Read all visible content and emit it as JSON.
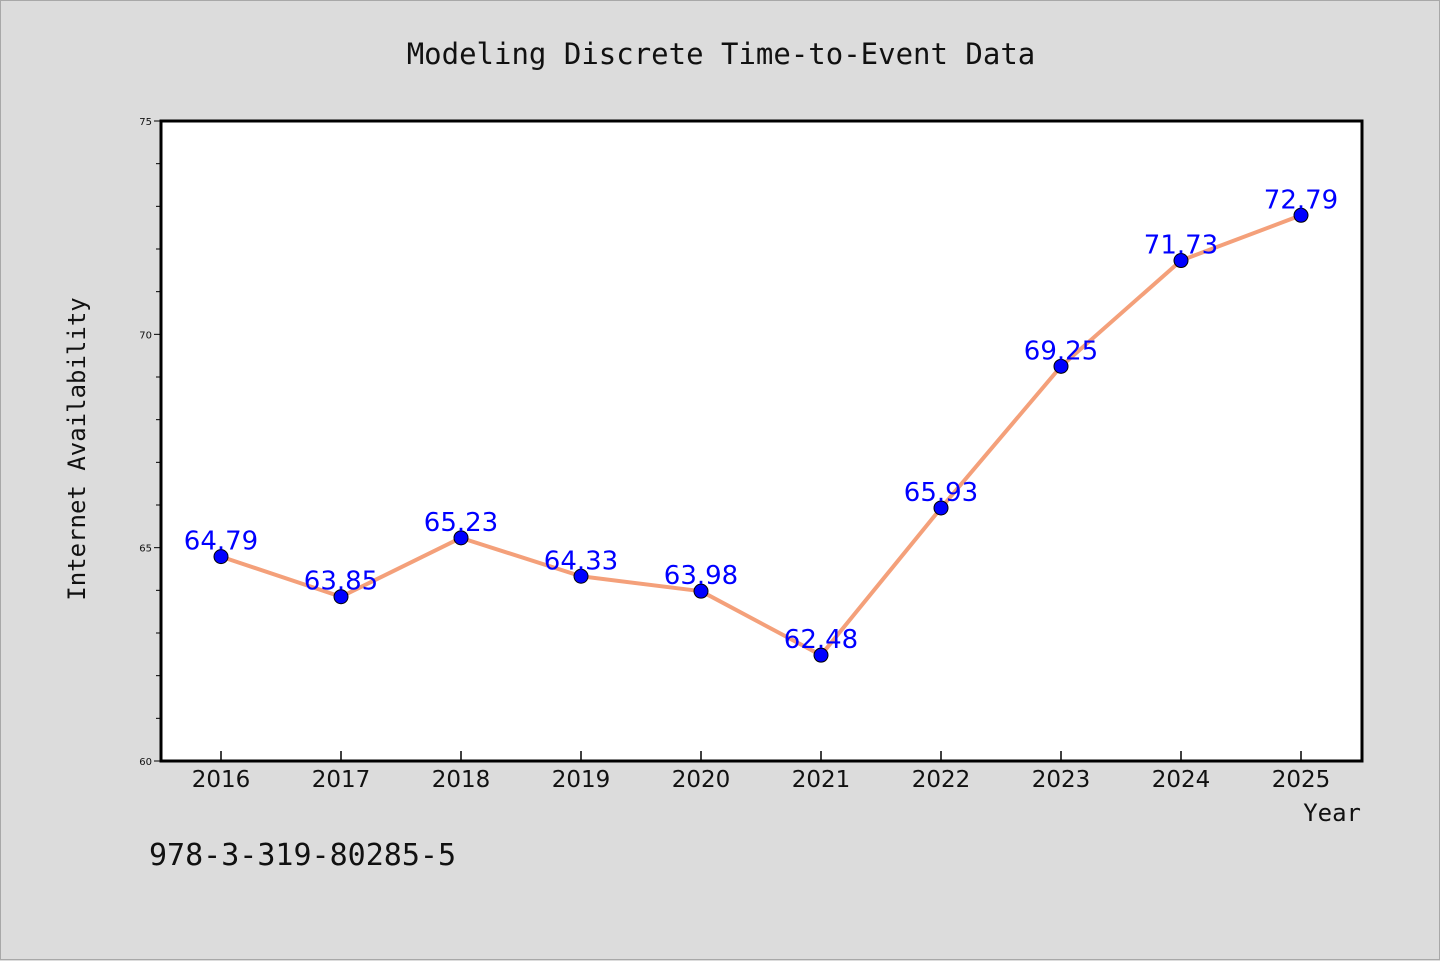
{
  "chart_data": {
    "type": "line",
    "title": "Modeling Discrete Time-to-Event Data",
    "xlabel": "Year",
    "ylabel": "Internet Availability",
    "categories": [
      "2016",
      "2017",
      "2018",
      "2019",
      "2020",
      "2021",
      "2022",
      "2023",
      "2024",
      "2025"
    ],
    "values": [
      64.79,
      63.85,
      65.23,
      64.33,
      63.98,
      62.48,
      65.93,
      69.25,
      71.73,
      72.79
    ],
    "data_labels": [
      "64.79",
      "63.85",
      "65.23",
      "64.33",
      "63.98",
      "62.48",
      "65.93",
      "69.25",
      "71.73",
      "72.79"
    ],
    "ylim": [
      60,
      75
    ],
    "yticks": [
      "60",
      "65",
      "70",
      "75"
    ],
    "grid": false,
    "line_color": "#f4a07a",
    "marker_color": "#0000ff",
    "label_color": "#0000ff"
  },
  "footer": {
    "isbn": "978-3-319-80285-5"
  }
}
